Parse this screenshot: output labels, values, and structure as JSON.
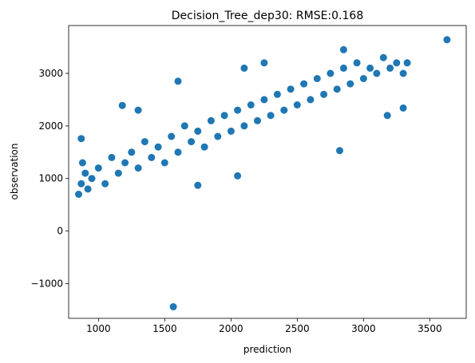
{
  "chart_data": {
    "type": "scatter",
    "title": "Decision_Tree_dep30: RMSE:0.168",
    "xlabel": "prediction",
    "ylabel": "observation",
    "xlim": [
      775,
      3775
    ],
    "ylim": [
      -1660,
      3910
    ],
    "xticks": [
      1000,
      1500,
      2000,
      2500,
      3000,
      3500
    ],
    "yticks": [
      -1000,
      0,
      1000,
      2000,
      3000
    ],
    "xtick_labels": [
      "1000",
      "1500",
      "2000",
      "2500",
      "3000",
      "3500"
    ],
    "ytick_labels": [
      "−1000",
      "0",
      "1000",
      "2000",
      "3000"
    ],
    "grid": false,
    "point_color": "#1f77b4",
    "series": [
      {
        "points": [
          [
            850,
            700
          ],
          [
            870,
            900
          ],
          [
            900,
            1100
          ],
          [
            920,
            800
          ],
          [
            880,
            1300
          ],
          [
            950,
            1000
          ],
          [
            1000,
            1200
          ],
          [
            1050,
            900
          ],
          [
            1100,
            1400
          ],
          [
            1150,
            1100
          ],
          [
            1200,
            1300
          ],
          [
            1250,
            1500
          ],
          [
            1300,
            1200
          ],
          [
            1350,
            1700
          ],
          [
            1400,
            1400
          ],
          [
            1450,
            1600
          ],
          [
            1500,
            1300
          ],
          [
            1550,
            1800
          ],
          [
            1600,
            1500
          ],
          [
            1650,
            2000
          ],
          [
            1700,
            1700
          ],
          [
            1750,
            1900
          ],
          [
            1800,
            1600
          ],
          [
            1850,
            2100
          ],
          [
            1900,
            1800
          ],
          [
            1950,
            2200
          ],
          [
            2000,
            1900
          ],
          [
            2050,
            2300
          ],
          [
            2100,
            2000
          ],
          [
            2150,
            2400
          ],
          [
            2200,
            2100
          ],
          [
            2250,
            2500
          ],
          [
            2300,
            2200
          ],
          [
            2350,
            2600
          ],
          [
            2400,
            2300
          ],
          [
            2450,
            2700
          ],
          [
            2500,
            2400
          ],
          [
            2550,
            2800
          ],
          [
            2600,
            2500
          ],
          [
            2650,
            2900
          ],
          [
            2700,
            2600
          ],
          [
            2750,
            3000
          ],
          [
            2800,
            2700
          ],
          [
            2850,
            3100
          ],
          [
            2900,
            2800
          ],
          [
            2950,
            3200
          ],
          [
            3000,
            2900
          ],
          [
            3050,
            3100
          ],
          [
            3100,
            3000
          ],
          [
            3150,
            3300
          ],
          [
            3200,
            3100
          ],
          [
            3250,
            3200
          ],
          [
            3300,
            3000
          ],
          [
            3330,
            3200
          ],
          [
            1180,
            2390
          ],
          [
            1600,
            2850
          ],
          [
            2100,
            3100
          ],
          [
            2250,
            3200
          ],
          [
            2850,
            3450
          ],
          [
            3630,
            3640
          ],
          [
            1565,
            -1440
          ],
          [
            870,
            1760
          ],
          [
            1300,
            2300
          ],
          [
            3300,
            2340
          ],
          [
            2820,
            1530
          ],
          [
            3180,
            2200
          ],
          [
            1750,
            870
          ],
          [
            2050,
            1050
          ]
        ]
      }
    ]
  }
}
